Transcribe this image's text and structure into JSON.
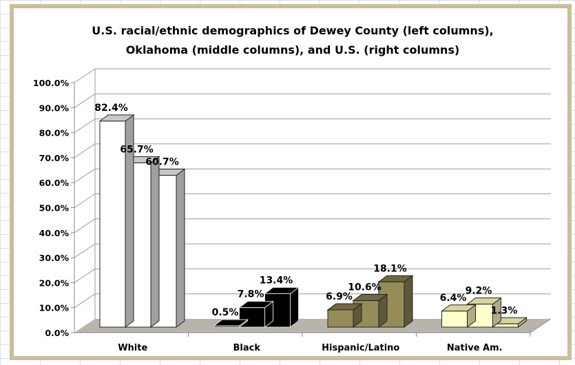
{
  "chart_data": {
    "type": "bar",
    "title_lines": [
      "U.S. racial/ethnic demographics of Dewey County (left columns),",
      "Oklahoma (middle columns), and U.S. (right columns)"
    ],
    "categories": [
      "White",
      "Black",
      "Hispanic/Latino",
      "Native Am."
    ],
    "series": [
      {
        "values": [
          82.4,
          0.5,
          6.9,
          6.4
        ]
      },
      {
        "values": [
          65.7,
          7.8,
          10.6,
          9.2
        ]
      },
      {
        "values": [
          60.7,
          13.4,
          18.1,
          1.3
        ]
      }
    ],
    "data_labels": [
      [
        "82.4%",
        "65.7%",
        "60.7%"
      ],
      [
        "0.5%",
        "7.8%",
        "13.4%"
      ],
      [
        "6.9%",
        "10.6%",
        "18.1%"
      ],
      [
        "6.4%",
        "9.2%",
        "1.3%"
      ]
    ],
    "category_colors": [
      "#ffffff",
      "#000000",
      "#968c58",
      "#ffffcc"
    ],
    "y_ticks": [
      "0.0%",
      "10.0%",
      "20.0%",
      "30.0%",
      "40.0%",
      "50.0%",
      "60.0%",
      "70.0%",
      "80.0%",
      "90.0%",
      "100.0%"
    ],
    "ylim": [
      0,
      100
    ],
    "grid": true,
    "style": "3d-clustered-column",
    "legend": "none"
  }
}
